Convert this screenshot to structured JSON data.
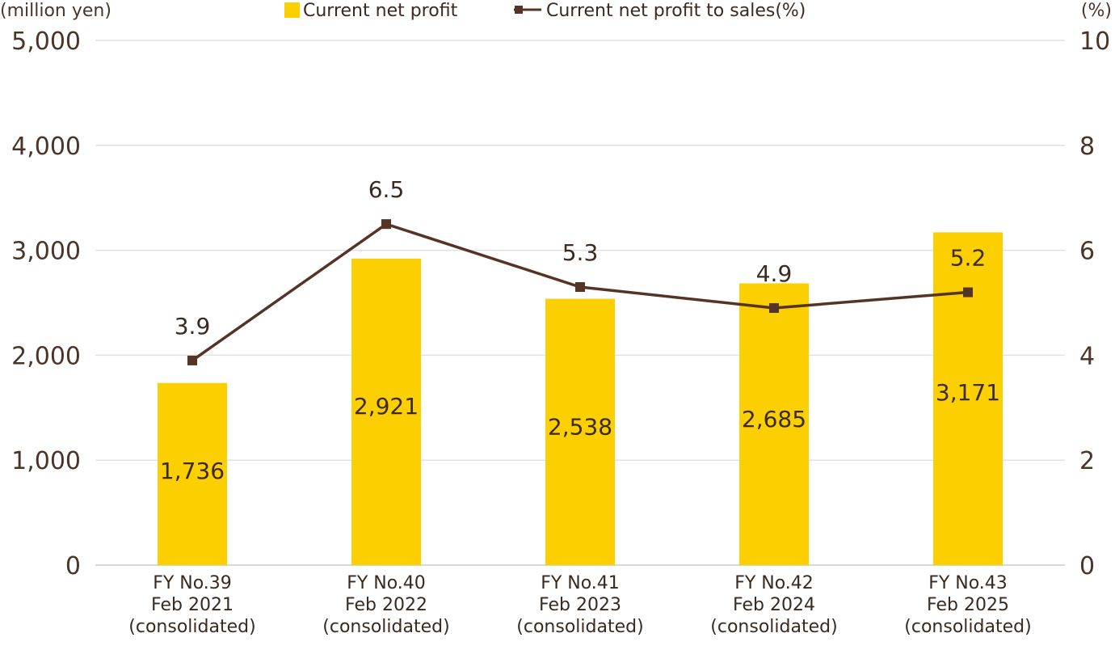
{
  "chart_data": {
    "type": "bar",
    "categories": [
      [
        "FY No.39",
        "Feb 2021",
        "(consolidated)"
      ],
      [
        "FY No.40",
        "Feb 2022",
        "(consolidated)"
      ],
      [
        "FY No.41",
        "Feb 2023",
        "(consolidated)"
      ],
      [
        "FY No.42",
        "Feb 2024",
        "(consolidated)"
      ],
      [
        "FY No.43",
        "Feb 2025",
        "(consolidated)"
      ]
    ],
    "series": [
      {
        "name": "Current net profit",
        "type": "bar",
        "axis": "left",
        "values": [
          1736,
          2921,
          2538,
          2685,
          3171
        ],
        "labels": [
          "1,736",
          "2,921",
          "2,538",
          "2,685",
          "3,171"
        ],
        "color": "#fbcf00"
      },
      {
        "name": "Current net profit to sales(%)",
        "type": "line",
        "axis": "right",
        "values": [
          3.9,
          6.5,
          5.3,
          4.9,
          5.2
        ],
        "labels": [
          "3.9",
          "6.5",
          "5.3",
          "4.9",
          "5.2"
        ],
        "color": "#553426"
      }
    ],
    "y_left": {
      "unit": "(million yen)",
      "range": [
        0,
        5000
      ],
      "ticks": [
        0,
        1000,
        2000,
        3000,
        4000,
        5000
      ],
      "tick_labels": [
        "0",
        "1,000",
        "2,000",
        "3,000",
        "4,000",
        "5,000"
      ]
    },
    "y_right": {
      "unit": "(%)",
      "range": [
        0,
        10
      ],
      "ticks": [
        0,
        2,
        4,
        6,
        8,
        10
      ],
      "tick_labels": [
        "0",
        "2",
        "4",
        "6",
        "8",
        "10"
      ]
    },
    "grid": true,
    "legend_position": "top-center"
  }
}
